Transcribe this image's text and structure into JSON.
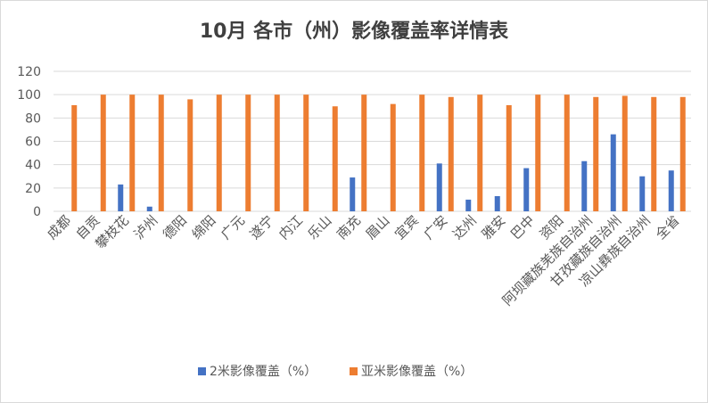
{
  "chart_data": {
    "type": "bar",
    "title": "10月 各市（州）影像覆盖率详情表",
    "xlabel": "",
    "ylabel": "",
    "ylim": [
      0,
      120
    ],
    "yticks": [
      0,
      20,
      40,
      60,
      80,
      100,
      120
    ],
    "grid": true,
    "legend_position": "bottom",
    "categories": [
      "成都",
      "自贡",
      "攀枝花",
      "泸州",
      "德阳",
      "绵阳",
      "广元",
      "遂宁",
      "内江",
      "乐山",
      "南充",
      "眉山",
      "宜宾",
      "广安",
      "达州",
      "雅安",
      "巴中",
      "资阳",
      "阿坝藏族羌族自治州",
      "甘孜藏族自治州",
      "凉山彝族自治州",
      "全省"
    ],
    "series": [
      {
        "name": "2米影像覆盖（%）",
        "color": "#4472C4",
        "values": [
          0,
          0,
          23,
          4,
          0,
          0,
          0,
          0,
          0,
          0,
          29,
          0,
          0,
          41,
          10,
          13,
          37,
          0,
          43,
          66,
          30,
          35
        ]
      },
      {
        "name": "亚米影像覆盖（%）",
        "color": "#ED7D31",
        "values": [
          91,
          100,
          100,
          100,
          96,
          100,
          100,
          100,
          100,
          90,
          100,
          92,
          100,
          98,
          100,
          91,
          100,
          100,
          98,
          99,
          98,
          98
        ]
      }
    ]
  }
}
